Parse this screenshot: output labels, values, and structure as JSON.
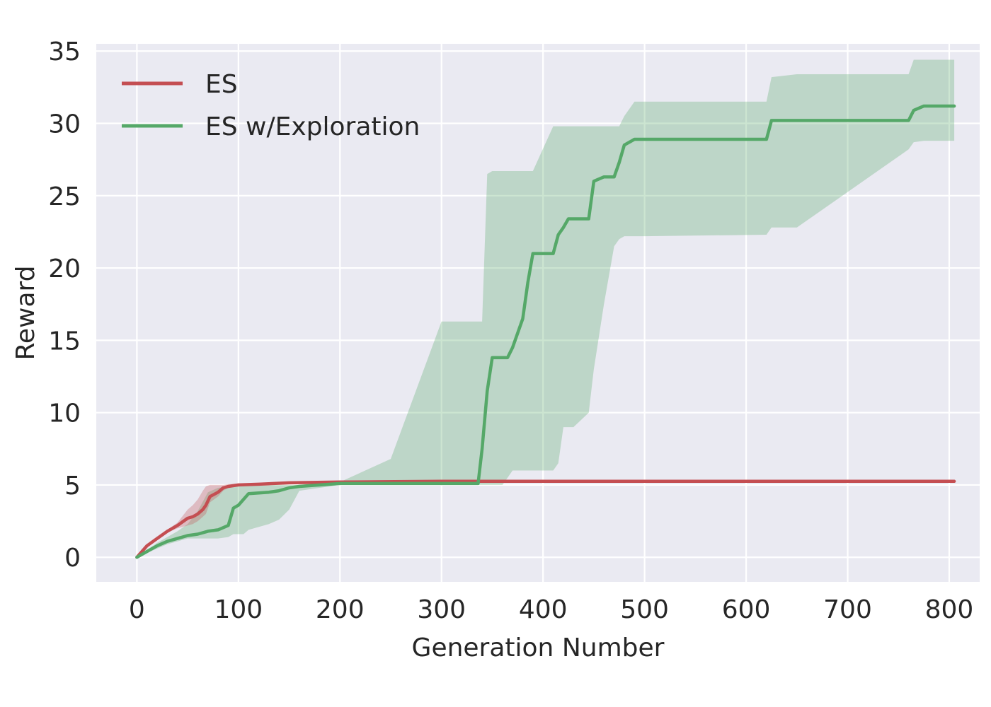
{
  "chart_data": {
    "type": "line",
    "title": "",
    "xlabel": "Generation Number",
    "ylabel": "Reward",
    "xlim": [
      -40,
      830
    ],
    "ylim": [
      -1.7,
      35.5
    ],
    "xticks": [
      0,
      100,
      200,
      300,
      400,
      500,
      600,
      700,
      800
    ],
    "yticks": [
      0,
      5,
      10,
      15,
      20,
      25,
      30,
      35
    ],
    "grid": true,
    "legend_position": "top-left",
    "colors": {
      "plot_bg": "#eaeaf2",
      "grid": "#ffffff",
      "es": "#c44e52",
      "es_exploration": "#55a868",
      "band": "#55a868"
    },
    "series": [
      {
        "name": "ES",
        "color": "#c44e52",
        "x": [
          0,
          5,
          10,
          20,
          30,
          40,
          50,
          55,
          60,
          65,
          68,
          72,
          80,
          85,
          90,
          100,
          120,
          150,
          200,
          300,
          400,
          500,
          600,
          700,
          805
        ],
        "y": [
          0,
          0.4,
          0.8,
          1.3,
          1.8,
          2.2,
          2.7,
          2.8,
          3.0,
          3.3,
          3.6,
          4.2,
          4.5,
          4.8,
          4.9,
          5.0,
          5.05,
          5.15,
          5.2,
          5.25,
          5.25,
          5.25,
          5.25,
          5.25,
          5.25
        ],
        "band_upper": [
          0,
          0.5,
          0.9,
          1.4,
          1.9,
          2.4,
          3.3,
          3.6,
          4.0,
          4.6,
          4.9,
          5.0,
          5.0,
          5.0,
          5.05,
          5.1,
          5.1,
          5.2,
          5.25,
          5.3,
          5.3,
          5.3,
          5.3,
          5.3,
          5.3
        ],
        "band_lower": [
          0,
          0.3,
          0.7,
          1.2,
          1.7,
          2.0,
          2.2,
          2.3,
          2.5,
          2.8,
          3.0,
          3.8,
          4.2,
          4.6,
          4.8,
          4.95,
          5.0,
          5.1,
          5.15,
          5.2,
          5.2,
          5.2,
          5.2,
          5.2,
          5.2
        ]
      },
      {
        "name": "ES w/Exploration",
        "color": "#55a868",
        "x": [
          0,
          10,
          20,
          30,
          40,
          50,
          60,
          70,
          80,
          90,
          95,
          100,
          105,
          110,
          130,
          140,
          150,
          160,
          200,
          250,
          300,
          336,
          340,
          345,
          350,
          360,
          365,
          370,
          380,
          385,
          390,
          410,
          415,
          420,
          425,
          430,
          445,
          450,
          460,
          470,
          475,
          480,
          490,
          500,
          620,
          625,
          650,
          760,
          765,
          775,
          805
        ],
        "y": [
          0,
          0.4,
          0.8,
          1.1,
          1.3,
          1.5,
          1.6,
          1.8,
          1.9,
          2.2,
          3.4,
          3.6,
          4.0,
          4.4,
          4.5,
          4.6,
          4.8,
          4.9,
          5.1,
          5.1,
          5.1,
          5.1,
          7.5,
          11.5,
          13.8,
          13.8,
          13.8,
          14.5,
          16.5,
          19.0,
          21.0,
          21.0,
          22.3,
          22.8,
          23.4,
          23.4,
          23.4,
          26.0,
          26.3,
          26.3,
          27.3,
          28.5,
          28.9,
          28.9,
          28.9,
          30.2,
          30.2,
          30.2,
          30.9,
          31.2,
          31.2
        ],
        "band_upper": [
          0,
          0.5,
          1.0,
          1.4,
          1.8,
          2.3,
          3.2,
          4.5,
          4.8,
          4.9,
          5.0,
          5.0,
          5.0,
          5.0,
          5.0,
          5.0,
          5.0,
          5.0,
          5.2,
          6.8,
          16.3,
          16.3,
          16.3,
          26.5,
          26.7,
          26.7,
          26.7,
          26.7,
          26.7,
          26.7,
          26.7,
          29.8,
          29.8,
          29.8,
          29.8,
          29.8,
          29.8,
          29.8,
          29.8,
          29.8,
          29.8,
          30.5,
          31.5,
          31.5,
          31.5,
          33.2,
          33.4,
          33.4,
          34.4,
          34.4,
          34.4
        ],
        "band_lower": [
          0,
          0.3,
          0.6,
          0.9,
          1.1,
          1.3,
          1.3,
          1.3,
          1.3,
          1.4,
          1.6,
          1.6,
          1.6,
          1.9,
          2.3,
          2.6,
          3.3,
          4.6,
          5.0,
          5.0,
          5.0,
          5.0,
          5.0,
          5.0,
          5.0,
          5.0,
          5.5,
          6.0,
          6.0,
          6.0,
          6.0,
          6.0,
          6.5,
          9.0,
          9.0,
          9.0,
          10.0,
          13.0,
          17.5,
          21.5,
          22.0,
          22.2,
          22.2,
          22.2,
          22.3,
          22.8,
          22.8,
          28.2,
          28.7,
          28.8,
          28.8
        ]
      }
    ]
  }
}
